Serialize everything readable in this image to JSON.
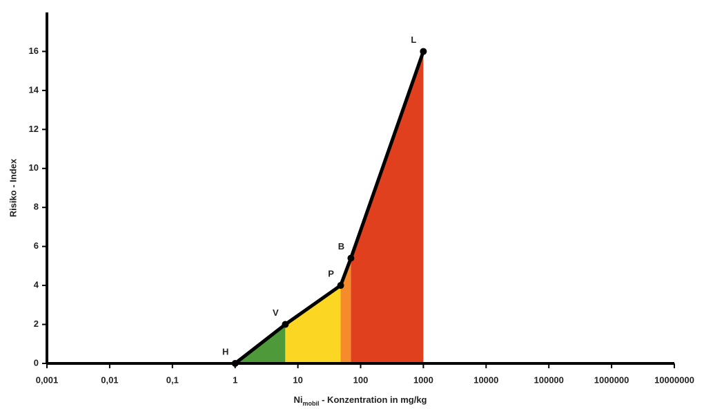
{
  "chart_data": {
    "type": "area-line",
    "y_label": "Risiko - Index",
    "x_label": {
      "main": "Ni",
      "sub": "mobil",
      "rest": " - Konzentration in mg/kg"
    },
    "x": [
      1,
      6.3,
      48,
      70,
      1000
    ],
    "values": [
      0,
      2,
      4,
      5.4,
      16
    ],
    "point_labels": [
      "H",
      "V",
      "P",
      "B",
      "L"
    ],
    "line_color": "#000000",
    "region_colors": [
      "#4e9a3a",
      "#fbd622",
      "#f58b2a",
      "#e1401f"
    ],
    "xscale": "log",
    "xlim": [
      0.001,
      10000000
    ],
    "xticks": [
      {
        "value": 0.001,
        "label": "0,001"
      },
      {
        "value": 0.01,
        "label": "0,01"
      },
      {
        "value": 0.1,
        "label": "0,1"
      },
      1,
      10,
      100,
      1000,
      10000,
      100000,
      1000000,
      10000000
    ],
    "ylim": [
      0,
      18
    ],
    "yticks": [
      0,
      2,
      4,
      6,
      8,
      10,
      12,
      14,
      16
    ]
  }
}
